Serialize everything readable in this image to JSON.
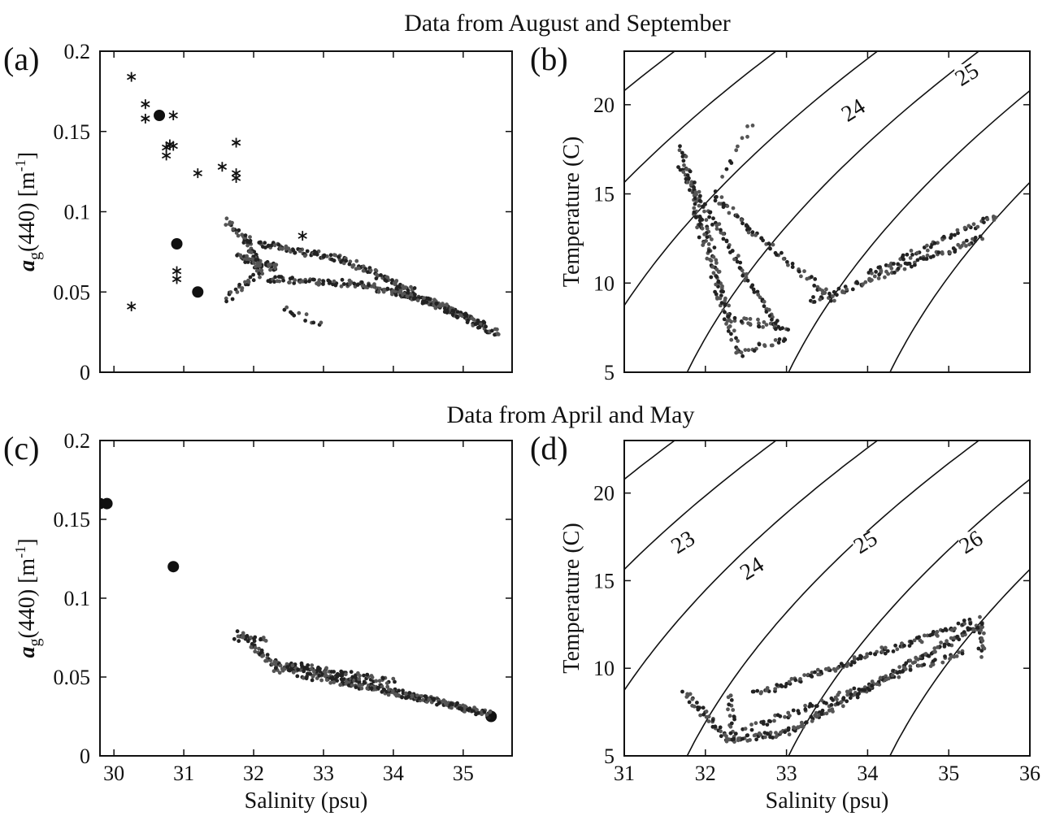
{
  "supertitles": {
    "top": "Data from August and September",
    "bottom": "Data from April and May"
  },
  "chart_data": [
    {
      "panel": "(a)",
      "type": "scatter",
      "xlabel": "",
      "ylabel": "a_g(440) [m^-1]",
      "ylabel_parts": {
        "a": "a",
        "g": "g",
        "rest": "(440) [m",
        "exp": "-1",
        "close": "]"
      },
      "xlim": [
        29.8,
        35.7
      ],
      "ylim": [
        0,
        0.2
      ],
      "xticks": [
        30,
        31,
        32,
        33,
        34,
        35
      ],
      "xtick_labels": [],
      "yticks": [
        0,
        0.05,
        0.1,
        0.15,
        0.2
      ],
      "ytick_labels": [
        "0",
        "0.05",
        "0.1",
        "0.15",
        "0.2"
      ],
      "series": [
        {
          "marker": "asterisk",
          "points": [
            [
              30.25,
              0.184
            ],
            [
              30.45,
              0.167
            ],
            [
              30.45,
              0.158
            ],
            [
              30.85,
              0.16
            ],
            [
              30.8,
              0.142
            ],
            [
              30.75,
              0.14
            ],
            [
              30.75,
              0.135
            ],
            [
              30.85,
              0.141
            ],
            [
              31.2,
              0.124
            ],
            [
              31.55,
              0.128
            ],
            [
              31.75,
              0.121
            ],
            [
              31.75,
              0.124
            ],
            [
              31.75,
              0.143
            ],
            [
              32.7,
              0.085
            ],
            [
              30.9,
              0.063
            ],
            [
              30.9,
              0.058
            ],
            [
              30.25,
              0.041
            ]
          ]
        },
        {
          "marker": "circle",
          "points": [
            [
              30.65,
              0.16
            ],
            [
              30.9,
              0.08
            ],
            [
              31.2,
              0.05
            ]
          ]
        },
        {
          "marker": "dot",
          "trends": [
            {
              "from": [
                31.6,
                0.095
              ],
              "to": [
                31.9,
                0.08
              ],
              "n": 20
            },
            {
              "from": [
                31.8,
                0.072
              ],
              "to": [
                32.3,
                0.065
              ],
              "n": 60
            },
            {
              "from": [
                31.9,
                0.085
              ],
              "to": [
                32.1,
                0.06
              ],
              "n": 40
            },
            {
              "from": [
                32.1,
                0.08
              ],
              "to": [
                33.3,
                0.07
              ],
              "n": 70
            },
            {
              "from": [
                33.3,
                0.07
              ],
              "to": [
                34.3,
                0.05
              ],
              "n": 60
            },
            {
              "from": [
                32.2,
                0.058
              ],
              "to": [
                33.5,
                0.055
              ],
              "n": 60
            },
            {
              "from": [
                33.5,
                0.055
              ],
              "to": [
                34.5,
                0.045
              ],
              "n": 70
            },
            {
              "from": [
                34.5,
                0.045
              ],
              "to": [
                35.5,
                0.024
              ],
              "n": 80
            },
            {
              "from": [
                34.0,
                0.052
              ],
              "to": [
                35.3,
                0.03
              ],
              "n": 60
            },
            {
              "from": [
                31.6,
                0.045
              ],
              "to": [
                32.0,
                0.06
              ],
              "n": 20
            },
            {
              "from": [
                32.4,
                0.04
              ],
              "to": [
                33.0,
                0.03
              ],
              "n": 12
            }
          ]
        }
      ]
    },
    {
      "panel": "(b)",
      "type": "scatter",
      "xlabel": "",
      "ylabel": "Temperature (C)",
      "xlim": [
        31,
        36
      ],
      "ylim": [
        5,
        23
      ],
      "xticks": [
        31,
        32,
        33,
        34,
        35,
        36
      ],
      "xtick_labels": [],
      "yticks": [
        5,
        10,
        15,
        20
      ],
      "ytick_labels": [
        "5",
        "10",
        "15",
        "20"
      ],
      "contours": [
        {
          "sigma": 22,
          "label": ""
        },
        {
          "sigma": 23,
          "label": ""
        },
        {
          "sigma": 24,
          "label": "24",
          "label_at": [
            33.85,
            19.5
          ]
        },
        {
          "sigma": 25,
          "label": "25",
          "label_at": [
            35.25,
            21.5
          ]
        },
        {
          "sigma": 26,
          "label": ""
        },
        {
          "sigma": 27,
          "label": ""
        }
      ],
      "series": [
        {
          "marker": "dot",
          "trends": [
            {
              "from": [
                31.7,
                17.5
              ],
              "to": [
                31.95,
                13
              ],
              "n": 40
            },
            {
              "from": [
                31.7,
                16.5
              ],
              "to": [
                32.9,
                7.4
              ],
              "n": 80
            },
            {
              "from": [
                31.9,
                15
              ],
              "to": [
                32.3,
                8
              ],
              "n": 50
            },
            {
              "from": [
                32.3,
                8
              ],
              "to": [
                33.0,
                7.5
              ],
              "n": 30
            },
            {
              "from": [
                31.9,
                13.5
              ],
              "to": [
                32.4,
                6
              ],
              "n": 50
            },
            {
              "from": [
                32.4,
                6
              ],
              "to": [
                33.0,
                7.0
              ],
              "n": 20
            },
            {
              "from": [
                32.1,
                15
              ],
              "to": [
                32.6,
                12.8
              ],
              "n": 30
            },
            {
              "from": [
                32.6,
                12.8
              ],
              "to": [
                33.6,
                9
              ],
              "n": 40
            },
            {
              "from": [
                33.3,
                9
              ],
              "to": [
                35.4,
                12.5
              ],
              "n": 90
            },
            {
              "from": [
                34.0,
                10.5
              ],
              "to": [
                35.6,
                13.8
              ],
              "n": 60
            },
            {
              "from": [
                32.6,
                19
              ],
              "to": [
                32.2,
                16
              ],
              "n": 10
            }
          ]
        }
      ]
    },
    {
      "panel": "(c)",
      "type": "scatter",
      "xlabel": "Salinity (psu)",
      "ylabel": "a_g(440) [m^-1]",
      "ylabel_parts": {
        "a": "a",
        "g": "g",
        "rest": "(440) [m",
        "exp": "-1",
        "close": "]"
      },
      "xlim": [
        29.8,
        35.7
      ],
      "ylim": [
        0,
        0.2
      ],
      "xticks": [
        30,
        31,
        32,
        33,
        34,
        35
      ],
      "xtick_labels": [
        "30",
        "31",
        "32",
        "33",
        "34",
        "35"
      ],
      "yticks": [
        0,
        0.05,
        0.1,
        0.15,
        0.2
      ],
      "ytick_labels": [
        "0",
        "0.05",
        "0.1",
        "0.15",
        "0.2"
      ],
      "series": [
        {
          "marker": "circle",
          "points": [
            [
              29.8,
              0.16
            ],
            [
              29.9,
              0.16
            ],
            [
              30.85,
              0.12
            ],
            [
              35.4,
              0.025
            ]
          ]
        },
        {
          "marker": "dot",
          "trends": [
            {
              "from": [
                31.8,
                0.078
              ],
              "to": [
                32.2,
                0.062
              ],
              "n": 30
            },
            {
              "from": [
                32.2,
                0.06
              ],
              "to": [
                35.4,
                0.026
              ],
              "n": 200
            },
            {
              "from": [
                32.3,
                0.055
              ],
              "to": [
                35.3,
                0.028
              ],
              "n": 120
            },
            {
              "from": [
                32.5,
                0.058
              ],
              "to": [
                34.0,
                0.047
              ],
              "n": 60
            },
            {
              "from": [
                31.75,
                0.074
              ],
              "to": [
                32.2,
                0.075
              ],
              "n": 15
            }
          ]
        }
      ]
    },
    {
      "panel": "(d)",
      "type": "scatter",
      "xlabel": "Salinity (psu)",
      "ylabel": "Temperature (C)",
      "xlim": [
        31,
        36
      ],
      "ylim": [
        5,
        23
      ],
      "xticks": [
        31,
        32,
        33,
        34,
        35,
        36
      ],
      "xtick_labels": [
        "31",
        "32",
        "33",
        "34",
        "35",
        "36"
      ],
      "yticks": [
        5,
        10,
        15,
        20
      ],
      "ytick_labels": [
        "5",
        "10",
        "15",
        "20"
      ],
      "contours": [
        {
          "sigma": 22,
          "label": ""
        },
        {
          "sigma": 23,
          "label": "23",
          "label_at": [
            31.75,
            17.0
          ]
        },
        {
          "sigma": 24,
          "label": "24",
          "label_at": [
            32.6,
            15.5
          ]
        },
        {
          "sigma": 25,
          "label": "25",
          "label_at": [
            34.0,
            17.0
          ]
        },
        {
          "sigma": 26,
          "label": "26",
          "label_at": [
            35.3,
            17.0
          ]
        },
        {
          "sigma": 27,
          "label": ""
        }
      ],
      "series": [
        {
          "marker": "dot",
          "trends": [
            {
              "from": [
                31.75,
                8.6
              ],
              "to": [
                32.3,
                5.8
              ],
              "n": 40
            },
            {
              "from": [
                32.3,
                5.9
              ],
              "to": [
                33.0,
                6.3
              ],
              "n": 40
            },
            {
              "from": [
                33.0,
                6.3
              ],
              "to": [
                35.4,
                12.5
              ],
              "n": 150
            },
            {
              "from": [
                32.6,
                8.5
              ],
              "to": [
                35.3,
                12.7
              ],
              "n": 120
            },
            {
              "from": [
                32.5,
                6.5
              ],
              "to": [
                35.2,
                11.0
              ],
              "n": 90
            },
            {
              "from": [
                35.4,
                10.8
              ],
              "to": [
                35.4,
                12.8
              ],
              "n": 20
            },
            {
              "from": [
                32.3,
                8.6
              ],
              "to": [
                32.35,
                5.9
              ],
              "n": 20
            }
          ]
        }
      ]
    }
  ]
}
